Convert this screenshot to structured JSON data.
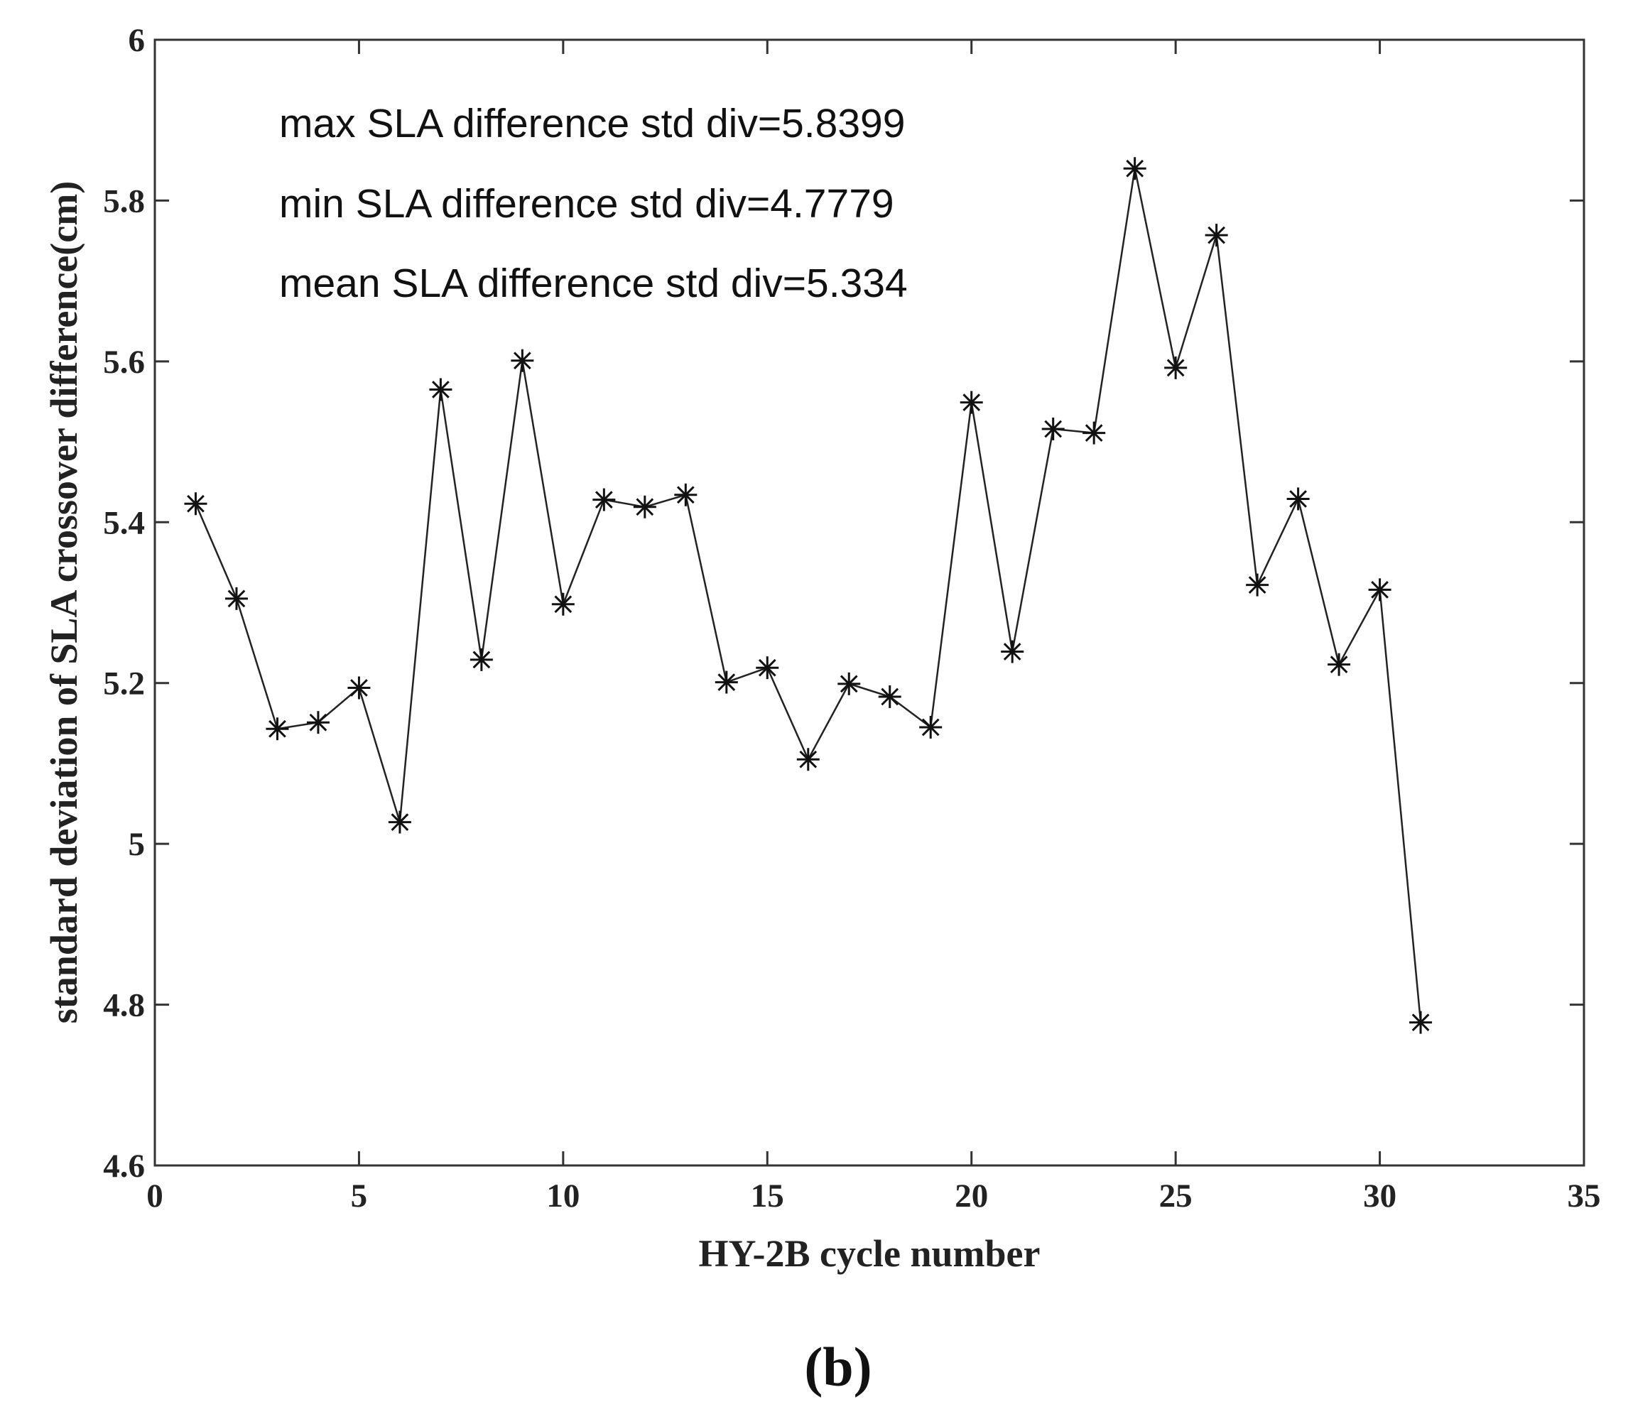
{
  "chart_data": {
    "type": "line",
    "marker": "asterisk",
    "xlabel": "HY-2B cycle number",
    "ylabel": "standard deviation of SLA crossover difference(cm)",
    "xlim": [
      0,
      35
    ],
    "ylim": [
      4.6,
      6
    ],
    "xticks": [
      0,
      5,
      10,
      15,
      20,
      25,
      30,
      35
    ],
    "yticks": [
      4.6,
      4.8,
      5,
      5.2,
      5.4,
      5.6,
      5.8,
      6
    ],
    "xtick_labels": [
      "0",
      "5",
      "10",
      "15",
      "20",
      "25",
      "30",
      "35"
    ],
    "ytick_labels": [
      "4.6",
      "4.8",
      "5",
      "5.2",
      "5.4",
      "5.6",
      "5.8",
      "6"
    ],
    "grid": false,
    "series": [
      {
        "name": "SLA crossover difference std",
        "x": [
          1,
          2,
          3,
          4,
          5,
          6,
          7,
          8,
          9,
          10,
          11,
          12,
          13,
          14,
          15,
          16,
          17,
          18,
          19,
          20,
          21,
          22,
          23,
          24,
          25,
          26,
          27,
          28,
          29,
          30,
          31
        ],
        "values": [
          5.423,
          5.305,
          5.143,
          5.151,
          5.194,
          5.027,
          5.565,
          5.229,
          5.601,
          5.298,
          5.428,
          5.419,
          5.434,
          5.201,
          5.219,
          5.105,
          5.199,
          5.183,
          5.145,
          5.549,
          5.239,
          5.516,
          5.511,
          5.8399,
          5.592,
          5.757,
          5.322,
          5.429,
          5.223,
          5.316,
          4.7779
        ]
      }
    ],
    "annotations": [
      "max SLA difference std div=5.8399",
      "min SLA difference std div=4.7779",
      "mean SLA difference std div=5.334"
    ],
    "panel_label": "(b)",
    "colors": {
      "line": "#222222",
      "marker": "#111111",
      "axes": "#333333"
    }
  }
}
